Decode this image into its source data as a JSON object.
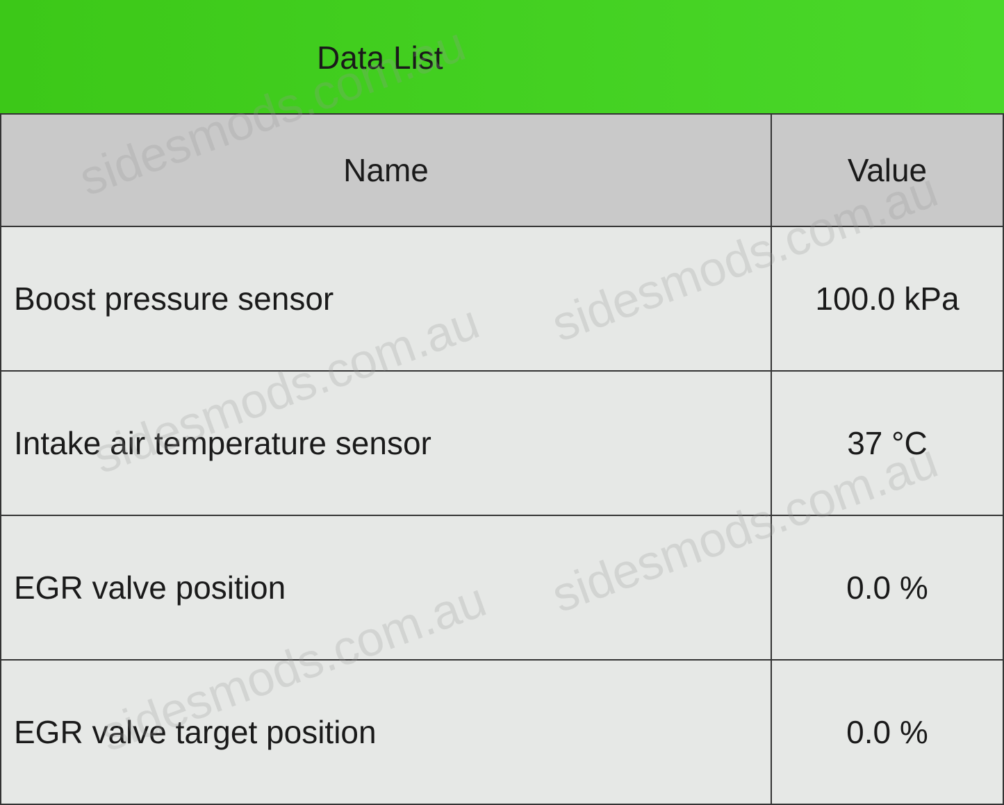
{
  "header": {
    "title": "Data List"
  },
  "table": {
    "columns": [
      "Name",
      "Value"
    ],
    "rows": [
      {
        "name": "Boost pressure sensor",
        "value": "100.0 kPa"
      },
      {
        "name": "Intake air temperature sensor",
        "value": "37 °C"
      },
      {
        "name": "EGR valve position",
        "value": "0.0 %"
      },
      {
        "name": "EGR valve target position",
        "value": "0.0 %"
      }
    ]
  },
  "watermark": "sidesmods.com.au"
}
